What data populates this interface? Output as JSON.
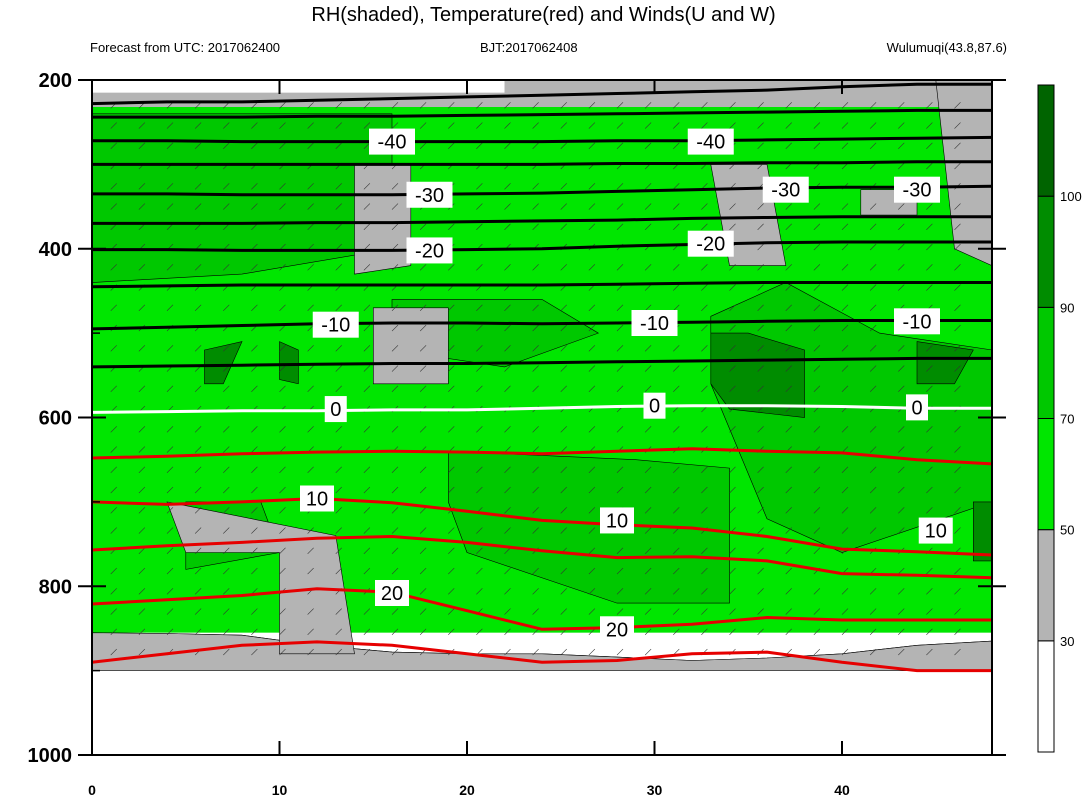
{
  "title": "RH(shaded), Temperature(red) and Winds(U and W)",
  "subtitle_left": "Forecast from UTC: 2017062400",
  "subtitle_mid": "BJT:2017062408",
  "subtitle_right": "Wulumuqi(43.8,87.6)",
  "colors": {
    "rh_lt30": "#ffffff",
    "rh_30_50": "#b4b4b4",
    "rh_50_70": "#00e600",
    "rh_70_90": "#00c800",
    "rh_90_100": "#008c00",
    "rh_gt100": "#006400",
    "temp_warm": "#e60000",
    "temp_cold": "#000000",
    "temp_zero": "#ffffff"
  },
  "chart_data": {
    "type": "heatmap",
    "x_ticks": [
      "0",
      "10",
      "20",
      "30",
      "40"
    ],
    "y_ticks": [
      "200",
      "400",
      "600",
      "800",
      "1000"
    ],
    "xlim": [
      0,
      48
    ],
    "ylim": [
      1000,
      200
    ],
    "colorbar_labels": [
      "30",
      "50",
      "70",
      "90",
      "100"
    ],
    "colorbar_ranges": [
      [
        0,
        30
      ],
      [
        30,
        50
      ],
      [
        50,
        70
      ],
      [
        70,
        90
      ],
      [
        90,
        100
      ],
      [
        100,
        110
      ]
    ],
    "contour_labels": [
      {
        "text": "-40",
        "x": 16,
        "p": 273
      },
      {
        "text": "-40",
        "x": 33,
        "p": 273
      },
      {
        "text": "-30",
        "x": 18,
        "p": 336
      },
      {
        "text": "-30",
        "x": 37,
        "p": 330
      },
      {
        "text": "-30",
        "x": 44,
        "p": 330
      },
      {
        "text": "-20",
        "x": 18,
        "p": 402
      },
      {
        "text": "-20",
        "x": 33,
        "p": 394
      },
      {
        "text": "-10",
        "x": 13,
        "p": 490
      },
      {
        "text": "-10",
        "x": 30,
        "p": 488
      },
      {
        "text": "-10",
        "x": 44,
        "p": 486
      },
      {
        "text": "0",
        "x": 13,
        "p": 590
      },
      {
        "text": "0",
        "x": 30,
        "p": 586
      },
      {
        "text": "0",
        "x": 44,
        "p": 588
      },
      {
        "text": "10",
        "x": 12,
        "p": 696
      },
      {
        "text": "10",
        "x": 28,
        "p": 722
      },
      {
        "text": "10",
        "x": 45,
        "p": 734
      },
      {
        "text": "20",
        "x": 16,
        "p": 808
      },
      {
        "text": "20",
        "x": 28,
        "p": 851
      }
    ],
    "temperature_contours": [
      {
        "label": "-40",
        "p": [
          228,
          226,
          226,
          224,
          222,
          220,
          218,
          216,
          214,
          212,
          208,
          205,
          205
        ]
      },
      {
        "label": "-40",
        "p": [
          272,
          272,
          273,
          273,
          273,
          273,
          273,
          272,
          272,
          271,
          270,
          269,
          268
        ]
      },
      {
        "label": "-30",
        "p": [
          335,
          335,
          336,
          336,
          336,
          335,
          334,
          332,
          330,
          328,
          327,
          327,
          326
        ]
      },
      {
        "label": "-20",
        "p": [
          401,
          401,
          402,
          402,
          402,
          401,
          400,
          397,
          395,
          393,
          392,
          392,
          392
        ]
      },
      {
        "label": "-10",
        "p": [
          495,
          493,
          491,
          489,
          488,
          488,
          489,
          488,
          487,
          486,
          485,
          485,
          485
        ]
      },
      {
        "label": "0",
        "p": [
          594,
          593,
          592,
          592,
          591,
          591,
          589,
          587,
          586,
          586,
          587,
          589,
          589
        ]
      },
      {
        "label": "10",
        "p": [
          700,
          703,
          700,
          696,
          701,
          711,
          722,
          727,
          731,
          741,
          756,
          759,
          763
        ]
      },
      {
        "label": "20",
        "p": [
          821,
          816,
          811,
          803,
          807,
          829,
          851,
          849,
          845,
          837,
          840,
          840,
          840
        ]
      }
    ],
    "cold_contours_extra": [
      {
        "p": [
          244,
          244,
          244,
          243,
          243,
          242,
          241,
          240,
          239,
          238,
          237,
          236,
          236
        ]
      },
      {
        "p": [
          300,
          300,
          300,
          300,
          300,
          300,
          300,
          299,
          299,
          298,
          298,
          297,
          297
        ]
      },
      {
        "p": [
          370,
          370,
          370,
          369,
          369,
          368,
          367,
          366,
          364,
          363,
          362,
          362,
          362
        ]
      },
      {
        "p": [
          445,
          444,
          443,
          443,
          443,
          443,
          443,
          442,
          441,
          440,
          440,
          440,
          440
        ]
      },
      {
        "p": [
          540,
          539,
          538,
          537,
          536,
          536,
          535,
          534,
          533,
          532,
          531,
          530,
          530
        ]
      }
    ],
    "warm_contours_extra": [
      {
        "p": [
          648,
          646,
          643,
          641,
          640,
          641,
          643,
          640,
          637,
          640,
          642,
          650,
          655
        ]
      },
      {
        "p": [
          757,
          752,
          748,
          743,
          741,
          748,
          758,
          766,
          765,
          770,
          785,
          787,
          790
        ]
      },
      {
        "p": [
          890,
          880,
          870,
          866,
          870,
          880,
          890,
          888,
          880,
          878,
          890,
          900,
          900
        ]
      }
    ],
    "x_grid_hours": [
      0,
      4,
      8,
      12,
      16,
      20,
      24,
      28,
      32,
      36,
      40,
      44,
      48
    ]
  }
}
